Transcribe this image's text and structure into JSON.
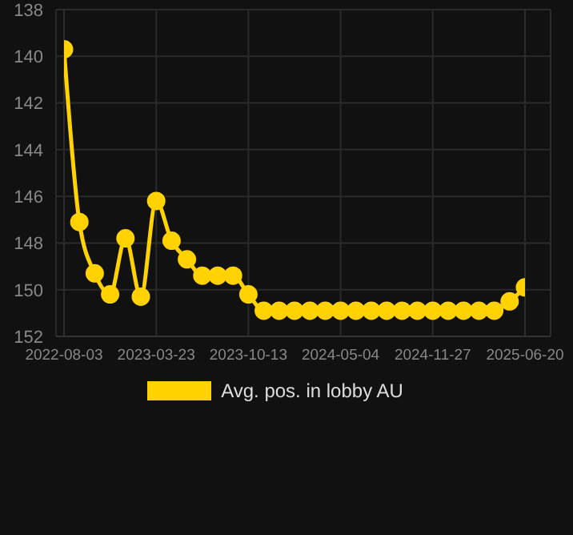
{
  "chart_data": {
    "type": "line",
    "categories": [
      "2022-08-03",
      null,
      null,
      null,
      null,
      null,
      "2023-03-23",
      null,
      null,
      null,
      null,
      null,
      "2023-10-13",
      null,
      null,
      null,
      null,
      null,
      "2024-05-04",
      null,
      null,
      null,
      null,
      null,
      "2024-11-27",
      null,
      null,
      null,
      null,
      null,
      "2025-06-20"
    ],
    "series": [
      {
        "name": "Avg. pos. in lobby AU",
        "color": "#ffd200",
        "values": [
          139.7,
          147.1,
          149.3,
          150.2,
          147.8,
          150.3,
          146.2,
          147.9,
          148.7,
          149.4,
          149.4,
          149.4,
          150.2,
          150.9,
          150.9,
          150.9,
          150.9,
          150.9,
          150.9,
          150.9,
          150.9,
          150.9,
          150.9,
          150.9,
          150.9,
          150.9,
          150.9,
          150.9,
          150.9,
          150.5,
          149.9
        ]
      }
    ],
    "ylim": [
      152,
      138
    ],
    "yticks": [
      138,
      140,
      142,
      144,
      146,
      148,
      150,
      152
    ],
    "grid": true,
    "legend": "bottom",
    "marker": "circle",
    "line_style": "solid"
  }
}
